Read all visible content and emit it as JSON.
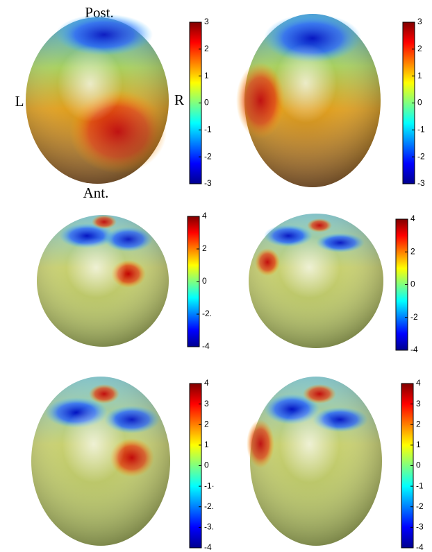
{
  "labels": {
    "posterior": "Post.",
    "left": "L",
    "right": "R",
    "anterior": "Ant."
  },
  "panels": [
    {
      "clim": [
        -3,
        3
      ],
      "ticks": [
        3,
        2,
        1,
        0,
        -1,
        -2,
        -3
      ]
    },
    {
      "clim": [
        -3,
        3
      ],
      "ticks": [
        3,
        2,
        1,
        0,
        -1,
        -2,
        -3
      ]
    },
    {
      "clim": [
        -4,
        4
      ],
      "ticks": [
        4,
        2,
        0,
        {
          "value": -2,
          "label": "-2."
        },
        -4
      ]
    },
    {
      "clim": [
        -4,
        4
      ],
      "ticks": [
        4,
        2,
        0,
        -2,
        -4
      ]
    },
    {
      "clim": [
        -4,
        4
      ],
      "ticks": [
        4,
        3,
        2,
        1,
        0,
        {
          "value": -1,
          "label": "-1·"
        },
        {
          "value": -2,
          "label": "-2."
        },
        {
          "value": -3,
          "label": "-3."
        },
        -4
      ]
    },
    {
      "clim": [
        -4,
        4
      ],
      "ticks": [
        4,
        3,
        2,
        1,
        0,
        -1,
        -2,
        -3,
        -4
      ]
    }
  ]
}
